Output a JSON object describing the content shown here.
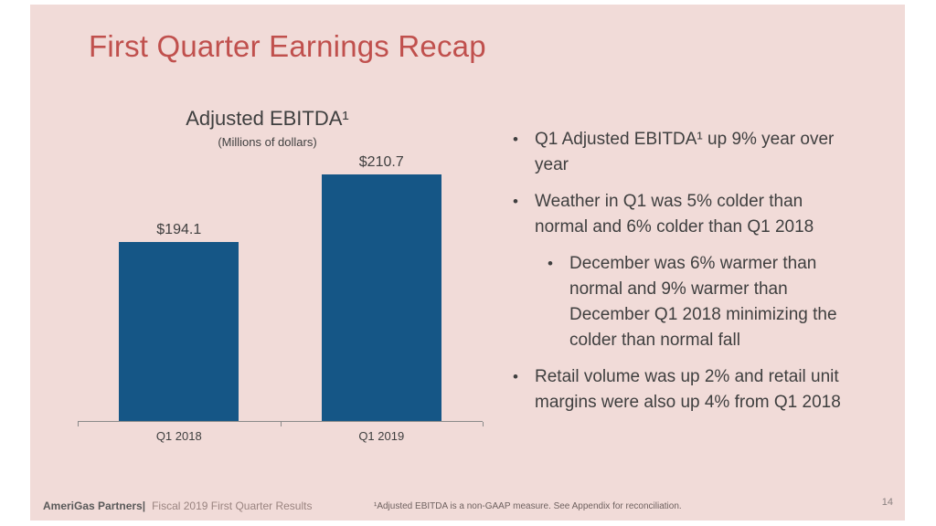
{
  "slide": {
    "title": "First Quarter Earnings Recap",
    "page_number": "14"
  },
  "chart_data": {
    "type": "bar",
    "title": "Adjusted EBITDA¹",
    "subtitle": "(Millions of dollars)",
    "categories": [
      "Q1 2018",
      "Q1 2019"
    ],
    "values": [
      194.1,
      210.7
    ],
    "value_labels": [
      "$194.1",
      "$210.7"
    ],
    "ylim": [
      150,
      220
    ],
    "grid": false,
    "legend": false,
    "bar_color": "#155686",
    "axis_color": "#8A8A8A"
  },
  "bullets": [
    {
      "level": 1,
      "text": "Q1 Adjusted EBITDA¹ up 9% year over\nyear"
    },
    {
      "level": 1,
      "text": "Weather in Q1 was 5% colder than\nnormal and 6% colder than Q1 2018"
    },
    {
      "level": 2,
      "text": "December was 6% warmer than\nnormal and 9% warmer than\nDecember Q1 2018 minimizing the\ncolder than normal fall"
    },
    {
      "level": 1,
      "text": "Retail volume was up 2% and retail unit\nmargins were also up 4% from Q1 2018"
    }
  ],
  "footer": {
    "brand": "AmeriGas Partners|",
    "subtitle": "Fiscal 2019 First Quarter Results",
    "footnote": "¹Adjusted EBITDA is a non-GAAP measure. See Appendix for reconciliation."
  },
  "colors": {
    "slide_background": "#F1DBD8",
    "title_red": "#C0504D",
    "body_text": "#3F3F3F",
    "bar_blue": "#155686"
  }
}
